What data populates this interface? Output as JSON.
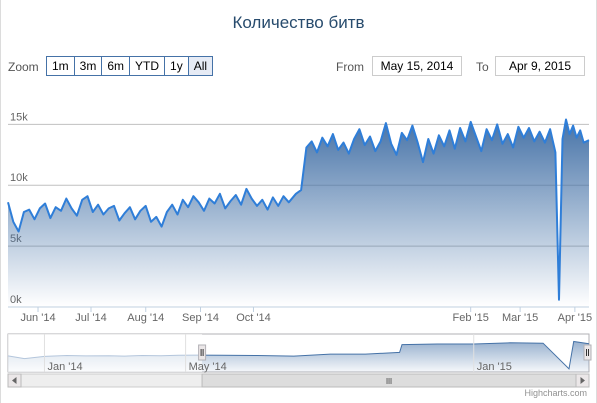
{
  "title": "Количество битв",
  "range_selector": {
    "zoom_label": "Zoom",
    "buttons": [
      "1m",
      "3m",
      "6m",
      "YTD",
      "1y",
      "All"
    ],
    "selected": "All",
    "from_label": "From",
    "from_value": "May 15, 2014",
    "to_label": "To",
    "to_value": "Apr 9, 2015"
  },
  "credits": "Highcharts.com",
  "colors": {
    "series": "#4572a7",
    "grid": "#c0c0c0",
    "handle": "#ebe7e8"
  },
  "chart_data": {
    "type": "area",
    "x_axis": {
      "type": "datetime",
      "min": "2014-05-15",
      "max": "2015-04-09",
      "tick_labels": [
        "Jun '14",
        "Jul '14",
        "Aug '14",
        "Sep '14",
        "Oct '14",
        "Feb '15",
        "Mar '15",
        "Apr '15"
      ],
      "tick_dates": [
        "2014-06-01",
        "2014-07-01",
        "2014-08-01",
        "2014-09-01",
        "2014-10-01",
        "2015-02-01",
        "2015-03-01",
        "2015-04-01"
      ]
    },
    "y_axis": {
      "min": 0,
      "max": 15000,
      "tick_labels": [
        "0k",
        "5k",
        "10k",
        "15k"
      ],
      "ticks": [
        0,
        5000,
        10000,
        15000
      ]
    },
    "grid": true,
    "series": [
      {
        "points": [
          [
            "2014-05-15",
            8600
          ],
          [
            "2014-05-18",
            7000
          ],
          [
            "2014-05-21",
            6200
          ],
          [
            "2014-05-24",
            7800
          ],
          [
            "2014-05-27",
            8000
          ],
          [
            "2014-05-30",
            7200
          ],
          [
            "2014-06-02",
            8100
          ],
          [
            "2014-06-05",
            8500
          ],
          [
            "2014-06-08",
            7300
          ],
          [
            "2014-06-11",
            8200
          ],
          [
            "2014-06-14",
            7900
          ],
          [
            "2014-06-17",
            8900
          ],
          [
            "2014-06-20",
            8100
          ],
          [
            "2014-06-23",
            7500
          ],
          [
            "2014-06-26",
            8800
          ],
          [
            "2014-06-29",
            9100
          ],
          [
            "2014-07-02",
            7800
          ],
          [
            "2014-07-05",
            8400
          ],
          [
            "2014-07-08",
            7600
          ],
          [
            "2014-07-11",
            8100
          ],
          [
            "2014-07-14",
            8300
          ],
          [
            "2014-07-17",
            7100
          ],
          [
            "2014-07-20",
            7700
          ],
          [
            "2014-07-23",
            8200
          ],
          [
            "2014-07-26",
            7200
          ],
          [
            "2014-07-29",
            7900
          ],
          [
            "2014-08-01",
            8300
          ],
          [
            "2014-08-04",
            7000
          ],
          [
            "2014-08-07",
            7400
          ],
          [
            "2014-08-10",
            6600
          ],
          [
            "2014-08-13",
            7800
          ],
          [
            "2014-08-16",
            8400
          ],
          [
            "2014-08-19",
            7600
          ],
          [
            "2014-08-22",
            8800
          ],
          [
            "2014-08-25",
            8200
          ],
          [
            "2014-08-28",
            9100
          ],
          [
            "2014-08-31",
            8600
          ],
          [
            "2014-09-03",
            7900
          ],
          [
            "2014-09-06",
            8900
          ],
          [
            "2014-09-09",
            8500
          ],
          [
            "2014-09-12",
            9300
          ],
          [
            "2014-09-15",
            8100
          ],
          [
            "2014-09-18",
            8700
          ],
          [
            "2014-09-21",
            9200
          ],
          [
            "2014-09-24",
            8400
          ],
          [
            "2014-09-27",
            9700
          ],
          [
            "2014-09-30",
            8900
          ],
          [
            "2014-10-03",
            8300
          ],
          [
            "2014-10-06",
            8800
          ],
          [
            "2014-10-09",
            8000
          ],
          [
            "2014-10-12",
            9000
          ],
          [
            "2014-10-15",
            8300
          ],
          [
            "2014-10-18",
            9100
          ],
          [
            "2014-10-21",
            8600
          ],
          [
            "2014-10-25",
            9300
          ],
          [
            "2014-10-28",
            9600
          ],
          [
            "2014-10-31",
            13100
          ],
          [
            "2014-11-03",
            13600
          ],
          [
            "2014-11-06",
            12700
          ],
          [
            "2014-11-09",
            13900
          ],
          [
            "2014-11-12",
            13200
          ],
          [
            "2014-11-15",
            14200
          ],
          [
            "2014-11-18",
            12900
          ],
          [
            "2014-11-21",
            13500
          ],
          [
            "2014-11-24",
            12600
          ],
          [
            "2014-11-27",
            13800
          ],
          [
            "2014-11-30",
            14600
          ],
          [
            "2014-12-03",
            13300
          ],
          [
            "2014-12-06",
            14000
          ],
          [
            "2014-12-09",
            12800
          ],
          [
            "2014-12-12",
            13600
          ],
          [
            "2014-12-15",
            15100
          ],
          [
            "2014-12-18",
            13400
          ],
          [
            "2014-12-21",
            12500
          ],
          [
            "2014-12-24",
            14300
          ],
          [
            "2014-12-27",
            13700
          ],
          [
            "2014-12-30",
            14900
          ],
          [
            "2015-01-02",
            13500
          ],
          [
            "2015-01-05",
            11900
          ],
          [
            "2015-01-08",
            13800
          ],
          [
            "2015-01-11",
            12600
          ],
          [
            "2015-01-14",
            14100
          ],
          [
            "2015-01-17",
            13200
          ],
          [
            "2015-01-20",
            14500
          ],
          [
            "2015-01-23",
            13000
          ],
          [
            "2015-01-26",
            14700
          ],
          [
            "2015-01-29",
            13600
          ],
          [
            "2015-02-01",
            15200
          ],
          [
            "2015-02-04",
            14000
          ],
          [
            "2015-02-07",
            12800
          ],
          [
            "2015-02-10",
            14600
          ],
          [
            "2015-02-13",
            13700
          ],
          [
            "2015-02-16",
            15000
          ],
          [
            "2015-02-19",
            13400
          ],
          [
            "2015-02-22",
            14200
          ],
          [
            "2015-02-25",
            13100
          ],
          [
            "2015-02-28",
            14800
          ],
          [
            "2015-03-03",
            13900
          ],
          [
            "2015-03-06",
            14700
          ],
          [
            "2015-03-09",
            13600
          ],
          [
            "2015-03-12",
            14400
          ],
          [
            "2015-03-15",
            13500
          ],
          [
            "2015-03-18",
            14600
          ],
          [
            "2015-03-21",
            12700
          ],
          [
            "2015-03-23",
            600
          ],
          [
            "2015-03-25",
            13800
          ],
          [
            "2015-03-27",
            15400
          ],
          [
            "2015-03-29",
            14200
          ],
          [
            "2015-03-31",
            14900
          ],
          [
            "2015-04-02",
            13900
          ],
          [
            "2015-04-04",
            14500
          ],
          [
            "2015-04-06",
            13500
          ],
          [
            "2015-04-09",
            13700
          ]
        ]
      }
    ],
    "navigator": {
      "x_min": "2013-12-01",
      "x_max": "2015-04-09",
      "tick_labels": [
        "Jan '14",
        "May '14",
        "Jan '15"
      ],
      "tick_dates": [
        "2014-01-01",
        "2014-05-01",
        "2015-01-01"
      ],
      "points": [
        [
          "2013-12-01",
          7800
        ],
        [
          "2013-12-15",
          6500
        ],
        [
          "2014-01-01",
          7600
        ],
        [
          "2014-01-20",
          8000
        ],
        [
          "2014-02-05",
          7800
        ],
        [
          "2014-02-25",
          7900
        ],
        [
          "2014-03-10",
          7700
        ],
        [
          "2014-03-25",
          8000
        ],
        [
          "2014-04-10",
          7900
        ],
        [
          "2014-04-25",
          8100
        ],
        [
          "2014-05-10",
          8200
        ],
        [
          "2014-06-01",
          8100
        ],
        [
          "2014-07-01",
          8000
        ],
        [
          "2014-08-01",
          7700
        ],
        [
          "2014-09-01",
          8700
        ],
        [
          "2014-10-01",
          8700
        ],
        [
          "2014-10-30",
          9500
        ],
        [
          "2014-11-01",
          13300
        ],
        [
          "2014-12-01",
          13600
        ],
        [
          "2015-01-01",
          13600
        ],
        [
          "2015-02-01",
          14200
        ],
        [
          "2015-03-01",
          14000
        ],
        [
          "2015-03-23",
          1500
        ],
        [
          "2015-03-27",
          14800
        ],
        [
          "2015-04-09",
          13700
        ]
      ]
    }
  }
}
